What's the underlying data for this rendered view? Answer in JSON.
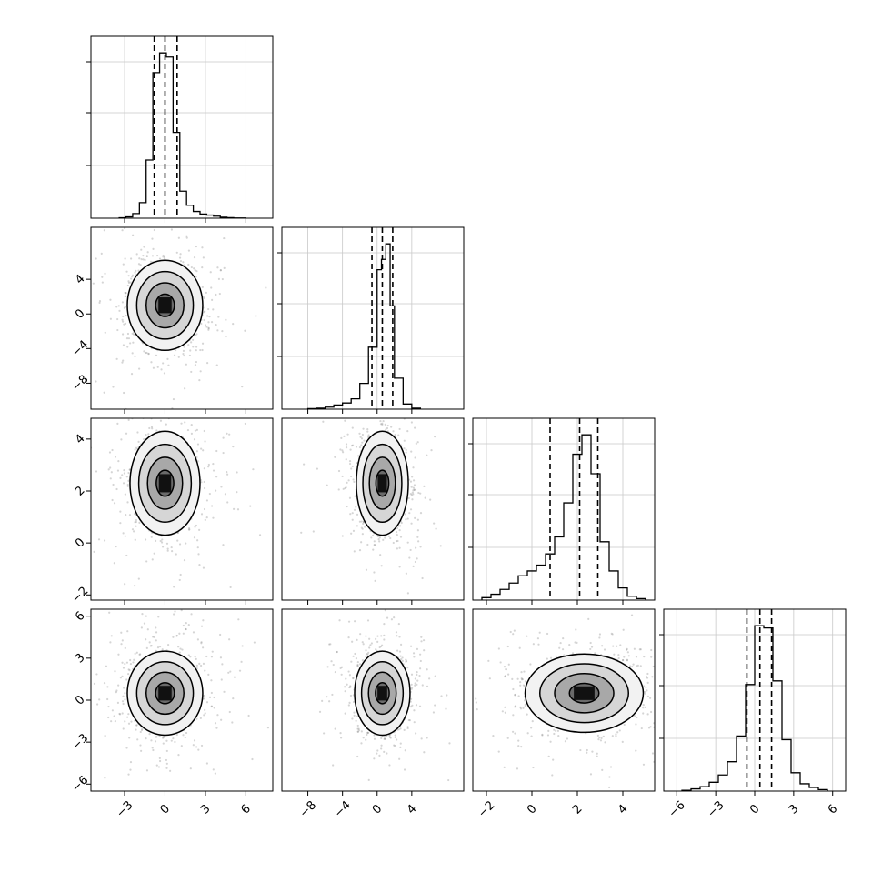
{
  "chart_data": [
    {
      "type": "histogram",
      "panel": "p00",
      "x_ticks": [
        "−3",
        "0",
        "3",
        "6"
      ],
      "xlim": [
        -5.5,
        8.0
      ],
      "quantile_lines": [
        -0.8,
        0.0,
        0.9
      ],
      "bins": {
        "edges": [
          -3.4,
          -2.9,
          -2.4,
          -1.9,
          -1.4,
          -0.9,
          -0.4,
          0.1,
          0.6,
          1.1,
          1.6,
          2.1,
          2.6,
          3.1,
          3.6,
          4.1,
          4.6,
          5.1,
          5.6,
          6.0
        ],
        "counts": [
          0.8,
          2.5,
          9,
          30,
          112,
          280,
          318,
          310,
          165,
          52,
          25,
          13,
          8,
          6,
          4,
          2,
          1,
          0.5,
          0.3
        ]
      }
    },
    {
      "type": "scatter",
      "panel": "p10",
      "x_ticks": [
        "−3",
        "0",
        "3",
        "6"
      ],
      "y_ticks": [
        "4",
        "0",
        "−4",
        "−8"
      ],
      "xlim": [
        -5.5,
        8.0
      ],
      "ylim": [
        -11,
        10
      ],
      "mean": [
        0.0,
        1.0
      ],
      "sd": [
        1.4,
        2.6
      ],
      "contour_levels": 3
    },
    {
      "type": "histogram",
      "panel": "p11",
      "x_ticks": [
        "−8",
        "−4",
        "0",
        "4"
      ],
      "xlim": [
        -11,
        10
      ],
      "quantile_lines": [
        -0.6,
        0.6,
        1.8
      ],
      "bins": {
        "edges": [
          -8.0,
          -7.0,
          -6.0,
          -5.0,
          -4.0,
          -3.0,
          -2.0,
          -1.0,
          0.0,
          0.5,
          1.0,
          1.5,
          2.0,
          3.0,
          4.0,
          5.0
        ],
        "counts": [
          1,
          2,
          4,
          8,
          12,
          20,
          50,
          120,
          270,
          290,
          320,
          200,
          60,
          10,
          2
        ]
      }
    },
    {
      "type": "scatter",
      "panel": "p20",
      "x_ticks": [
        "−3",
        "0",
        "3",
        "6"
      ],
      "y_ticks": [
        "4",
        "2",
        "0",
        "−2"
      ],
      "xlim": [
        -5.5,
        8.0
      ],
      "ylim": [
        -2.2,
        4.8
      ],
      "mean": [
        0.0,
        2.3
      ],
      "sd": [
        1.3,
        1.0
      ],
      "contour_levels": 3
    },
    {
      "type": "scatter",
      "panel": "p21",
      "x_ticks": [
        "−8",
        "−4",
        "0",
        "4"
      ],
      "y_ticks": [
        "4",
        "2",
        "0",
        "−2"
      ],
      "xlim": [
        -11,
        10
      ],
      "ylim": [
        -2.2,
        4.8
      ],
      "mean": [
        0.6,
        2.3
      ],
      "sd": [
        1.5,
        1.0
      ],
      "contour_levels": 3
    },
    {
      "type": "histogram",
      "panel": "p22",
      "x_ticks": [
        "−2",
        "0",
        "2",
        "4"
      ],
      "xlim": [
        -2.6,
        5.4
      ],
      "quantile_lines": [
        0.8,
        2.1,
        2.9
      ],
      "bins": {
        "edges": [
          -2.2,
          -1.8,
          -1.4,
          -1.0,
          -0.6,
          -0.2,
          0.2,
          0.6,
          1.0,
          1.4,
          1.8,
          2.2,
          2.6,
          3.0,
          3.4,
          3.8,
          4.2,
          4.6,
          5.0
        ],
        "counts": [
          5,
          12,
          22,
          35,
          50,
          60,
          72,
          95,
          130,
          200,
          300,
          340,
          260,
          120,
          60,
          25,
          8,
          3
        ]
      }
    },
    {
      "type": "scatter",
      "panel": "p30",
      "x_ticks": [
        "−3",
        "0",
        "3",
        "6"
      ],
      "y_ticks": [
        "6",
        "3",
        "0",
        "−3",
        "−6"
      ],
      "xlim": [
        -5.5,
        8.0
      ],
      "ylim": [
        -6.5,
        6.5
      ],
      "mean": [
        0.0,
        0.5
      ],
      "sd": [
        1.4,
        1.5
      ],
      "contour_levels": 3
    },
    {
      "type": "scatter",
      "panel": "p31",
      "x_ticks": [
        "−8",
        "−4",
        "0",
        "4"
      ],
      "y_ticks": [
        "6",
        "3",
        "0",
        "−3",
        "−6"
      ],
      "xlim": [
        -11,
        10
      ],
      "ylim": [
        -6.5,
        6.5
      ],
      "mean": [
        0.6,
        0.5
      ],
      "sd": [
        1.6,
        1.5
      ],
      "contour_levels": 3
    },
    {
      "type": "scatter",
      "panel": "p32",
      "x_ticks": [
        "−2",
        "0",
        "2",
        "4"
      ],
      "y_ticks": [
        "6",
        "3",
        "0",
        "−3",
        "−6"
      ],
      "xlim": [
        -2.6,
        5.4
      ],
      "ylim": [
        -6.5,
        6.5
      ],
      "mean": [
        2.3,
        0.5
      ],
      "sd": [
        1.3,
        1.4
      ],
      "contour_levels": 3
    },
    {
      "type": "histogram",
      "panel": "p33",
      "x_ticks": [
        "−6",
        "−3",
        "0",
        "3",
        "6"
      ],
      "xlim": [
        -7,
        7
      ],
      "quantile_lines": [
        -0.6,
        0.4,
        1.3
      ],
      "bins": {
        "edges": [
          -5.6,
          -4.9,
          -4.2,
          -3.5,
          -2.8,
          -2.1,
          -1.4,
          -0.7,
          0.0,
          0.7,
          1.4,
          2.1,
          2.8,
          3.5,
          4.2,
          4.9,
          5.6
        ],
        "counts": [
          1,
          3,
          6,
          12,
          22,
          40,
          75,
          145,
          225,
          222,
          150,
          70,
          25,
          10,
          5,
          2
        ]
      }
    }
  ]
}
